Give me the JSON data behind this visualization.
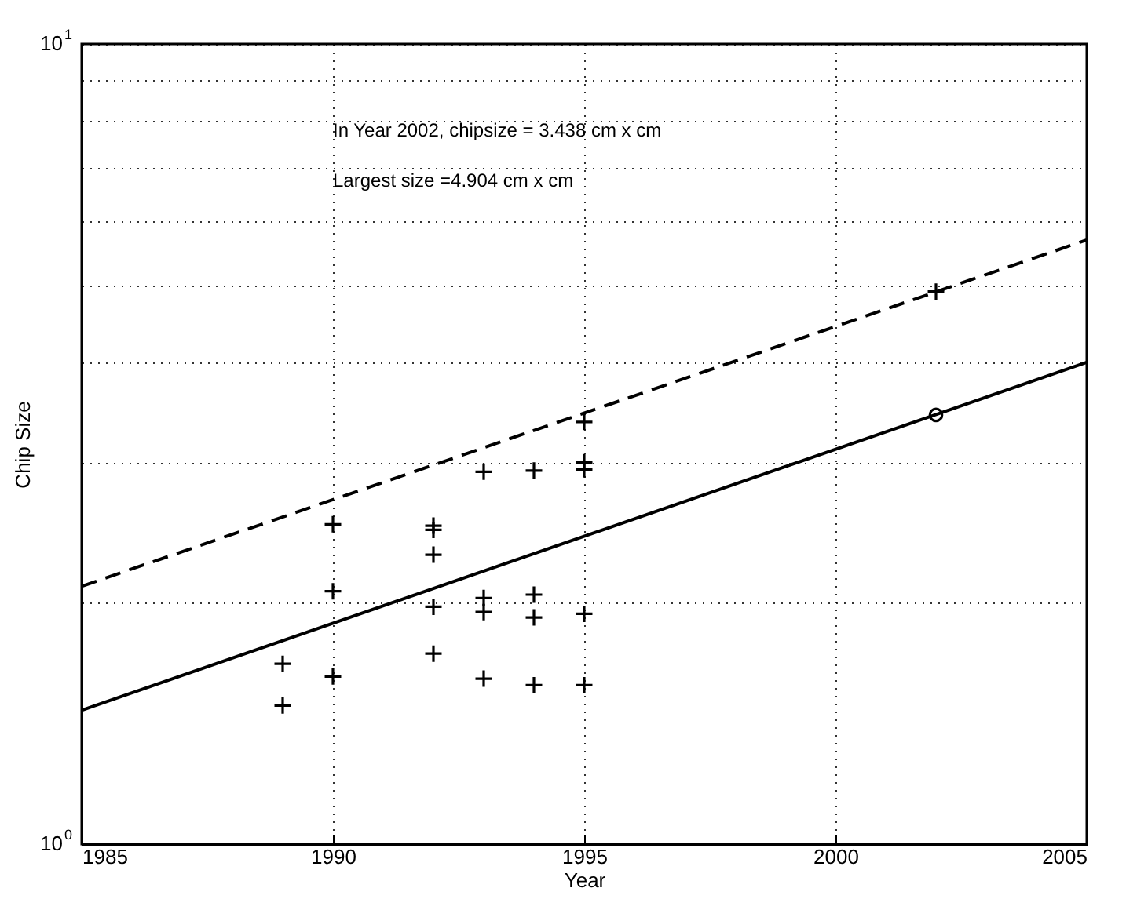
{
  "chart_data": {
    "type": "scatter",
    "xlabel": "Year",
    "ylabel": "Chip Size",
    "log": "y",
    "grid": true,
    "xlim": [
      1985,
      2005
    ],
    "xticks": [
      1985,
      1990,
      1995,
      2000,
      2005
    ],
    "ylim": [
      1,
      10
    ],
    "yticks": [
      {
        "value": 1,
        "label": "10$^{0}$"
      },
      {
        "value": 2,
        "label": null
      },
      {
        "value": 3,
        "label": null
      },
      {
        "value": 4,
        "label": null
      },
      {
        "value": 5,
        "label": null
      },
      {
        "value": 6,
        "label": null
      },
      {
        "value": 7,
        "label": null
      },
      {
        "value": 8,
        "label": null
      },
      {
        "value": 9,
        "label": null
      },
      {
        "value": 10,
        "label": "10$^{1}$"
      }
    ],
    "annotations": [
      "In Year 2002, chipsize = 3.438 cm x cm",
      "Largest size =4.904 cm x cm"
    ],
    "series": [
      {
        "marker": "cross",
        "color": "#000000",
        "x": [
          1989,
          1989,
          1990,
          1990,
          1990,
          1992,
          1992,
          1992,
          1992,
          1992,
          1993,
          1993,
          1993,
          1993,
          1994,
          1994,
          1994,
          1994,
          1995,
          1995,
          1995,
          1995,
          1995
        ],
        "values": [
          1.68,
          1.49,
          2.51,
          2.07,
          1.62,
          2.5,
          2.47,
          2.3,
          1.98,
          1.73,
          2.92,
          2.03,
          1.95,
          1.61,
          2.93,
          2.05,
          1.92,
          1.58,
          3.37,
          3.0,
          2.94,
          1.94,
          1.58
        ]
      },
      {
        "type": "line",
        "line_style": "solid",
        "color": "#000000",
        "x": [
          1985,
          2005
        ],
        "values": [
          1.47,
          4.0
        ]
      },
      {
        "type": "line",
        "line_style": "dashed",
        "color": "#000000",
        "x": [
          1985,
          2005
        ],
        "values": [
          2.1,
          5.69
        ]
      },
      {
        "marker": "circle",
        "color": "#000000",
        "x": [
          2002
        ],
        "values": [
          3.438
        ]
      },
      {
        "marker": "cross",
        "color": "#000000",
        "x": [
          2002
        ],
        "values": [
          4.904
        ]
      }
    ]
  }
}
